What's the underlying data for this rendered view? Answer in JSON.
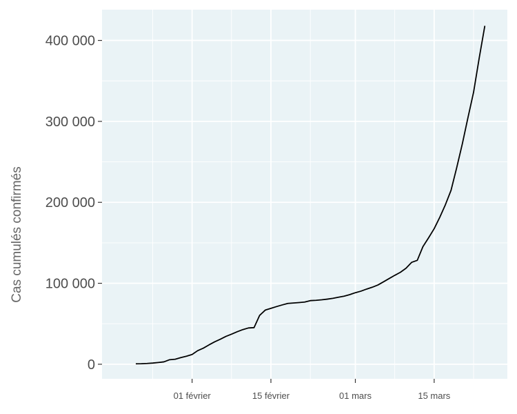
{
  "chart_data": {
    "type": "line",
    "title": "",
    "xlabel": "",
    "ylabel": "Cas cumulés confirmés",
    "grid": true,
    "legend": "none",
    "colors": {
      "panel_background": "#eaf3f6",
      "grid": "#ffffff",
      "line": "#000000",
      "tick": "#333333"
    },
    "xlim": [
      "2020-01-16",
      "2020-03-28"
    ],
    "ylim": [
      -18000,
      438000
    ],
    "x_ticks": [
      {
        "value": "2020-02-01",
        "label": "01 février"
      },
      {
        "value": "2020-02-15",
        "label": "15 février"
      },
      {
        "value": "2020-03-01",
        "label": "01 mars"
      },
      {
        "value": "2020-03-15",
        "label": "15 mars"
      }
    ],
    "y_ticks": [
      {
        "value": 0,
        "label": "0"
      },
      {
        "value": 100000,
        "label": "100 000"
      },
      {
        "value": 200000,
        "label": "200 000"
      },
      {
        "value": 300000,
        "label": "300 000"
      },
      {
        "value": 400000,
        "label": "400 000"
      }
    ],
    "series": [
      {
        "x": [
          "2020-01-22",
          "2020-01-23",
          "2020-01-24",
          "2020-01-25",
          "2020-01-26",
          "2020-01-27",
          "2020-01-28",
          "2020-01-29",
          "2020-01-30",
          "2020-01-31",
          "2020-02-01",
          "2020-02-02",
          "2020-02-03",
          "2020-02-04",
          "2020-02-05",
          "2020-02-06",
          "2020-02-07",
          "2020-02-08",
          "2020-02-09",
          "2020-02-10",
          "2020-02-11",
          "2020-02-12",
          "2020-02-13",
          "2020-02-14",
          "2020-02-15",
          "2020-02-16",
          "2020-02-17",
          "2020-02-18",
          "2020-02-19",
          "2020-02-20",
          "2020-02-21",
          "2020-02-22",
          "2020-02-23",
          "2020-02-24",
          "2020-02-25",
          "2020-02-26",
          "2020-02-27",
          "2020-02-28",
          "2020-02-29",
          "2020-03-01",
          "2020-03-02",
          "2020-03-03",
          "2020-03-04",
          "2020-03-05",
          "2020-03-06",
          "2020-03-07",
          "2020-03-08",
          "2020-03-09",
          "2020-03-10",
          "2020-03-11",
          "2020-03-12",
          "2020-03-13",
          "2020-03-14",
          "2020-03-15",
          "2020-03-16",
          "2020-03-17",
          "2020-03-18",
          "2020-03-19",
          "2020-03-20",
          "2020-03-21",
          "2020-03-22",
          "2020-03-23",
          "2020-03-24"
        ],
        "values": [
          555,
          654,
          941,
          1434,
          2118,
          2927,
          5578,
          6166,
          8234,
          9927,
          12038,
          16787,
          19881,
          23892,
          27635,
          30817,
          34391,
          37120,
          40150,
          42762,
          44802,
          45221,
          60368,
          66885,
          69030,
          71224,
          73258,
          75136,
          75639,
          76197,
          76819,
          78572,
          78958,
          79561,
          80406,
          81388,
          82746,
          84112,
          86011,
          88369,
          90306,
          92840,
          95120,
          97886,
          101801,
          105847,
          109821,
          113590,
          118620,
          125875,
          128343,
          145193,
          156097,
          167449,
          181546,
          197142,
          214910,
          242708,
          272166,
          304524,
          335955,
          378235,
          418045
        ]
      }
    ]
  }
}
